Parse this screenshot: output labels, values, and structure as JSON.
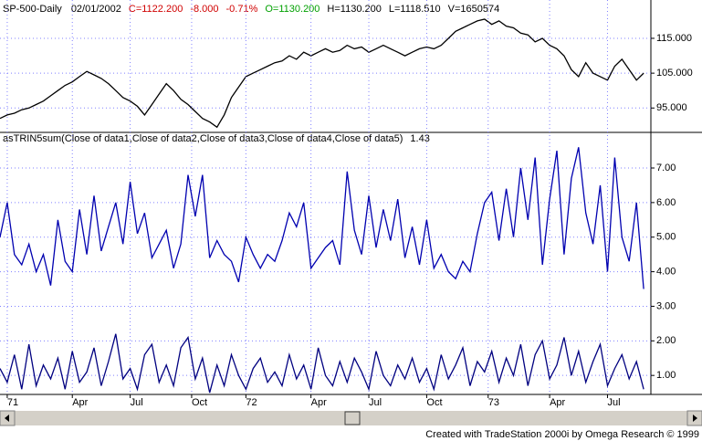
{
  "chart_data": [
    {
      "type": "line",
      "title": "SP-500-Daily",
      "date": "02/01/2002",
      "quote": [
        {
          "text": "C=1122.200",
          "color": "#d00000"
        },
        {
          "text": "-8.000",
          "color": "#d00000"
        },
        {
          "text": "-0.71%",
          "color": "#d00000"
        },
        {
          "text": "O=1130.200",
          "color": "#00a000"
        },
        {
          "text": "H=1130.200",
          "color": "#000000"
        },
        {
          "text": "L=1118.510",
          "color": "#000000"
        },
        {
          "text": "V=1650574",
          "color": "#000000"
        }
      ],
      "x": [
        0,
        1,
        2,
        3,
        4,
        5,
        6,
        7,
        8,
        9,
        10,
        11,
        12,
        13,
        14,
        15,
        16,
        17,
        18,
        19,
        20,
        21,
        22,
        23,
        24,
        25,
        26,
        27,
        28,
        29,
        30,
        31,
        32,
        33,
        34,
        35,
        36,
        37,
        38,
        39,
        40,
        41,
        42,
        43,
        44,
        45,
        46,
        47,
        48,
        49,
        50,
        51,
        52,
        53,
        54,
        55,
        56,
        57,
        58,
        59,
        60,
        61,
        62,
        63,
        64,
        65,
        66,
        67,
        68,
        69,
        70,
        71,
        72,
        73,
        74,
        75,
        76,
        77,
        78,
        79,
        80,
        81,
        82,
        83,
        84,
        85,
        86,
        87,
        88,
        89
      ],
      "xlim": [
        0,
        90
      ],
      "ylim": [
        88,
        126
      ],
      "yticks": [
        {
          "value": 95,
          "label": "95.000"
        },
        {
          "value": 105,
          "label": "105.000"
        },
        {
          "value": 115,
          "label": "115.000"
        }
      ],
      "grid": true,
      "series": [
        {
          "name": "SP-500-Daily",
          "color": "#000000",
          "values": [
            92,
            93,
            93.5,
            94.5,
            95,
            96,
            97,
            98.5,
            100,
            101.5,
            102.5,
            104,
            105.5,
            104.5,
            103.5,
            102,
            100,
            98,
            97,
            95.5,
            93,
            96,
            99,
            102,
            100,
            97.5,
            96,
            94,
            92,
            91,
            89.5,
            93,
            98,
            101,
            104,
            105,
            106,
            107,
            108,
            108.5,
            110,
            109,
            111,
            110,
            111,
            112,
            111,
            111.5,
            113,
            112,
            112.5,
            111,
            112,
            113,
            112,
            111,
            110,
            111,
            112,
            112.5,
            112,
            113,
            115,
            117,
            118,
            119,
            120,
            120.5,
            119,
            120,
            118.5,
            118,
            116.5,
            116,
            114,
            115,
            113,
            112,
            110,
            106,
            104,
            108,
            105,
            104,
            103,
            107,
            109,
            106,
            103,
            105
          ]
        }
      ]
    },
    {
      "type": "line",
      "title": "asTRIN5sum(Close of data1,Close of data2,Close of data3,Close of data4,Close of data5)",
      "last_value_label": "1.43",
      "x": [
        0,
        1,
        2,
        3,
        4,
        5,
        6,
        7,
        8,
        9,
        10,
        11,
        12,
        13,
        14,
        15,
        16,
        17,
        18,
        19,
        20,
        21,
        22,
        23,
        24,
        25,
        26,
        27,
        28,
        29,
        30,
        31,
        32,
        33,
        34,
        35,
        36,
        37,
        38,
        39,
        40,
        41,
        42,
        43,
        44,
        45,
        46,
        47,
        48,
        49,
        50,
        51,
        52,
        53,
        54,
        55,
        56,
        57,
        58,
        59,
        60,
        61,
        62,
        63,
        64,
        65,
        66,
        67,
        68,
        69,
        70,
        71,
        72,
        73,
        74,
        75,
        76,
        77,
        78,
        79,
        80,
        81,
        82,
        83,
        84,
        85,
        86,
        87,
        88,
        89
      ],
      "xlim": [
        0,
        90
      ],
      "ylim": [
        0.45,
        8.03
      ],
      "xticks": [
        {
          "value": 1,
          "label": "71"
        },
        {
          "value": 10,
          "label": "Apr"
        },
        {
          "value": 18,
          "label": "Jul"
        },
        {
          "value": 26.5,
          "label": "Oct"
        },
        {
          "value": 34,
          "label": "72"
        },
        {
          "value": 43,
          "label": "Apr"
        },
        {
          "value": 51,
          "label": "Jul"
        },
        {
          "value": 59,
          "label": "Oct"
        },
        {
          "value": 67.5,
          "label": "73"
        },
        {
          "value": 76,
          "label": "Apr"
        },
        {
          "value": 84,
          "label": "Jul"
        }
      ],
      "yticks": [
        {
          "value": 1,
          "label": "1.00"
        },
        {
          "value": 2,
          "label": "2.00"
        },
        {
          "value": 3,
          "label": "3.00"
        },
        {
          "value": 4,
          "label": "4.00"
        },
        {
          "value": 5,
          "label": "5.00"
        },
        {
          "value": 6,
          "label": "6.00"
        },
        {
          "value": 7,
          "label": "7.00"
        }
      ],
      "grid": true,
      "series": [
        {
          "name": "asTRIN5sum",
          "color": "#0000b0",
          "values": [
            5,
            6,
            4.5,
            4.2,
            4.8,
            4,
            4.5,
            3.6,
            5.5,
            4.3,
            4,
            5.8,
            4.5,
            6.2,
            4.6,
            5.3,
            6,
            4.8,
            6.6,
            5.1,
            5.7,
            4.4,
            4.8,
            5.2,
            4.1,
            4.8,
            6.8,
            5.6,
            6.8,
            4.4,
            4.9,
            4.5,
            4.3,
            3.7,
            5,
            4.5,
            4.1,
            4.5,
            4.3,
            4.9,
            5.7,
            5.3,
            6,
            4.1,
            4.4,
            4.7,
            4.9,
            4.2,
            6.9,
            5.2,
            4.5,
            6.2,
            4.7,
            5.8,
            4.9,
            6.1,
            4.4,
            5.3,
            4.2,
            5.5,
            4.1,
            4.5,
            4,
            3.8,
            4.3,
            4,
            5.1,
            6,
            6.3,
            4.9,
            6.4,
            5,
            7,
            5.5,
            7.3,
            4.2,
            6.1,
            7.5,
            4.5,
            6.7,
            7.6,
            5.7,
            4.8,
            6.5,
            4,
            7.3,
            5,
            4.3,
            6,
            3.5
          ]
        },
        {
          "name": "TRIN",
          "color": "#000080",
          "values": [
            1.2,
            0.8,
            1.6,
            0.6,
            1.9,
            0.7,
            1.3,
            0.9,
            1.5,
            0.6,
            1.7,
            0.8,
            1.1,
            1.8,
            0.7,
            1.4,
            2.2,
            0.9,
            1.2,
            0.6,
            1.6,
            1.9,
            0.8,
            1.3,
            0.7,
            1.8,
            2.1,
            0.9,
            1.5,
            0.5,
            1.3,
            0.7,
            1.6,
            1,
            0.6,
            1.2,
            1.5,
            0.8,
            1.1,
            0.7,
            1.6,
            0.9,
            1.3,
            0.6,
            1.8,
            1,
            0.7,
            1.4,
            0.8,
            1.5,
            1.1,
            0.6,
            1.7,
            1,
            0.7,
            1.3,
            0.9,
            1.5,
            0.8,
            1.2,
            0.6,
            1.6,
            0.9,
            1.3,
            1.8,
            0.7,
            1.4,
            1.1,
            1.7,
            0.8,
            1.5,
            1,
            1.9,
            0.7,
            1.6,
            2,
            0.9,
            1.3,
            2.1,
            1,
            1.7,
            0.8,
            1.4,
            1.9,
            0.7,
            1.2,
            1.6,
            0.9,
            1.4,
            0.6
          ]
        }
      ]
    }
  ],
  "footer": "Created with TradeStation 2000i by Omega Research © 1999"
}
